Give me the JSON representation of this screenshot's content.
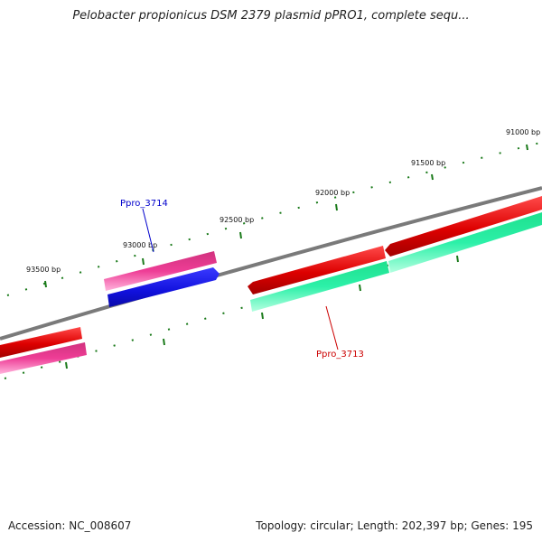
{
  "title": "Pelobacter propionicus DSM 2379 plasmid pPRO1, complete sequ...",
  "footer": {
    "accession": "Accession: NC_008607",
    "info": "Topology: circular; Length: 202,397 bp; Genes: 195"
  },
  "ticks": [
    {
      "label": "91000 bp"
    },
    {
      "label": "91500 bp"
    },
    {
      "label": "92000 bp"
    },
    {
      "label": "92500 bp"
    },
    {
      "label": "93000 bp"
    },
    {
      "label": "93500 bp"
    }
  ],
  "gene_labels": [
    {
      "label": "Ppro_3714",
      "color": "#0000cc"
    },
    {
      "label": "Ppro_3713",
      "color": "#cc0000"
    }
  ],
  "colors": {
    "backbone": "#888888",
    "tick": "#1a7a1a",
    "red": "#dd0000",
    "pink": "#e8338f",
    "blue": "#1111dd",
    "green": "#22eea0"
  }
}
